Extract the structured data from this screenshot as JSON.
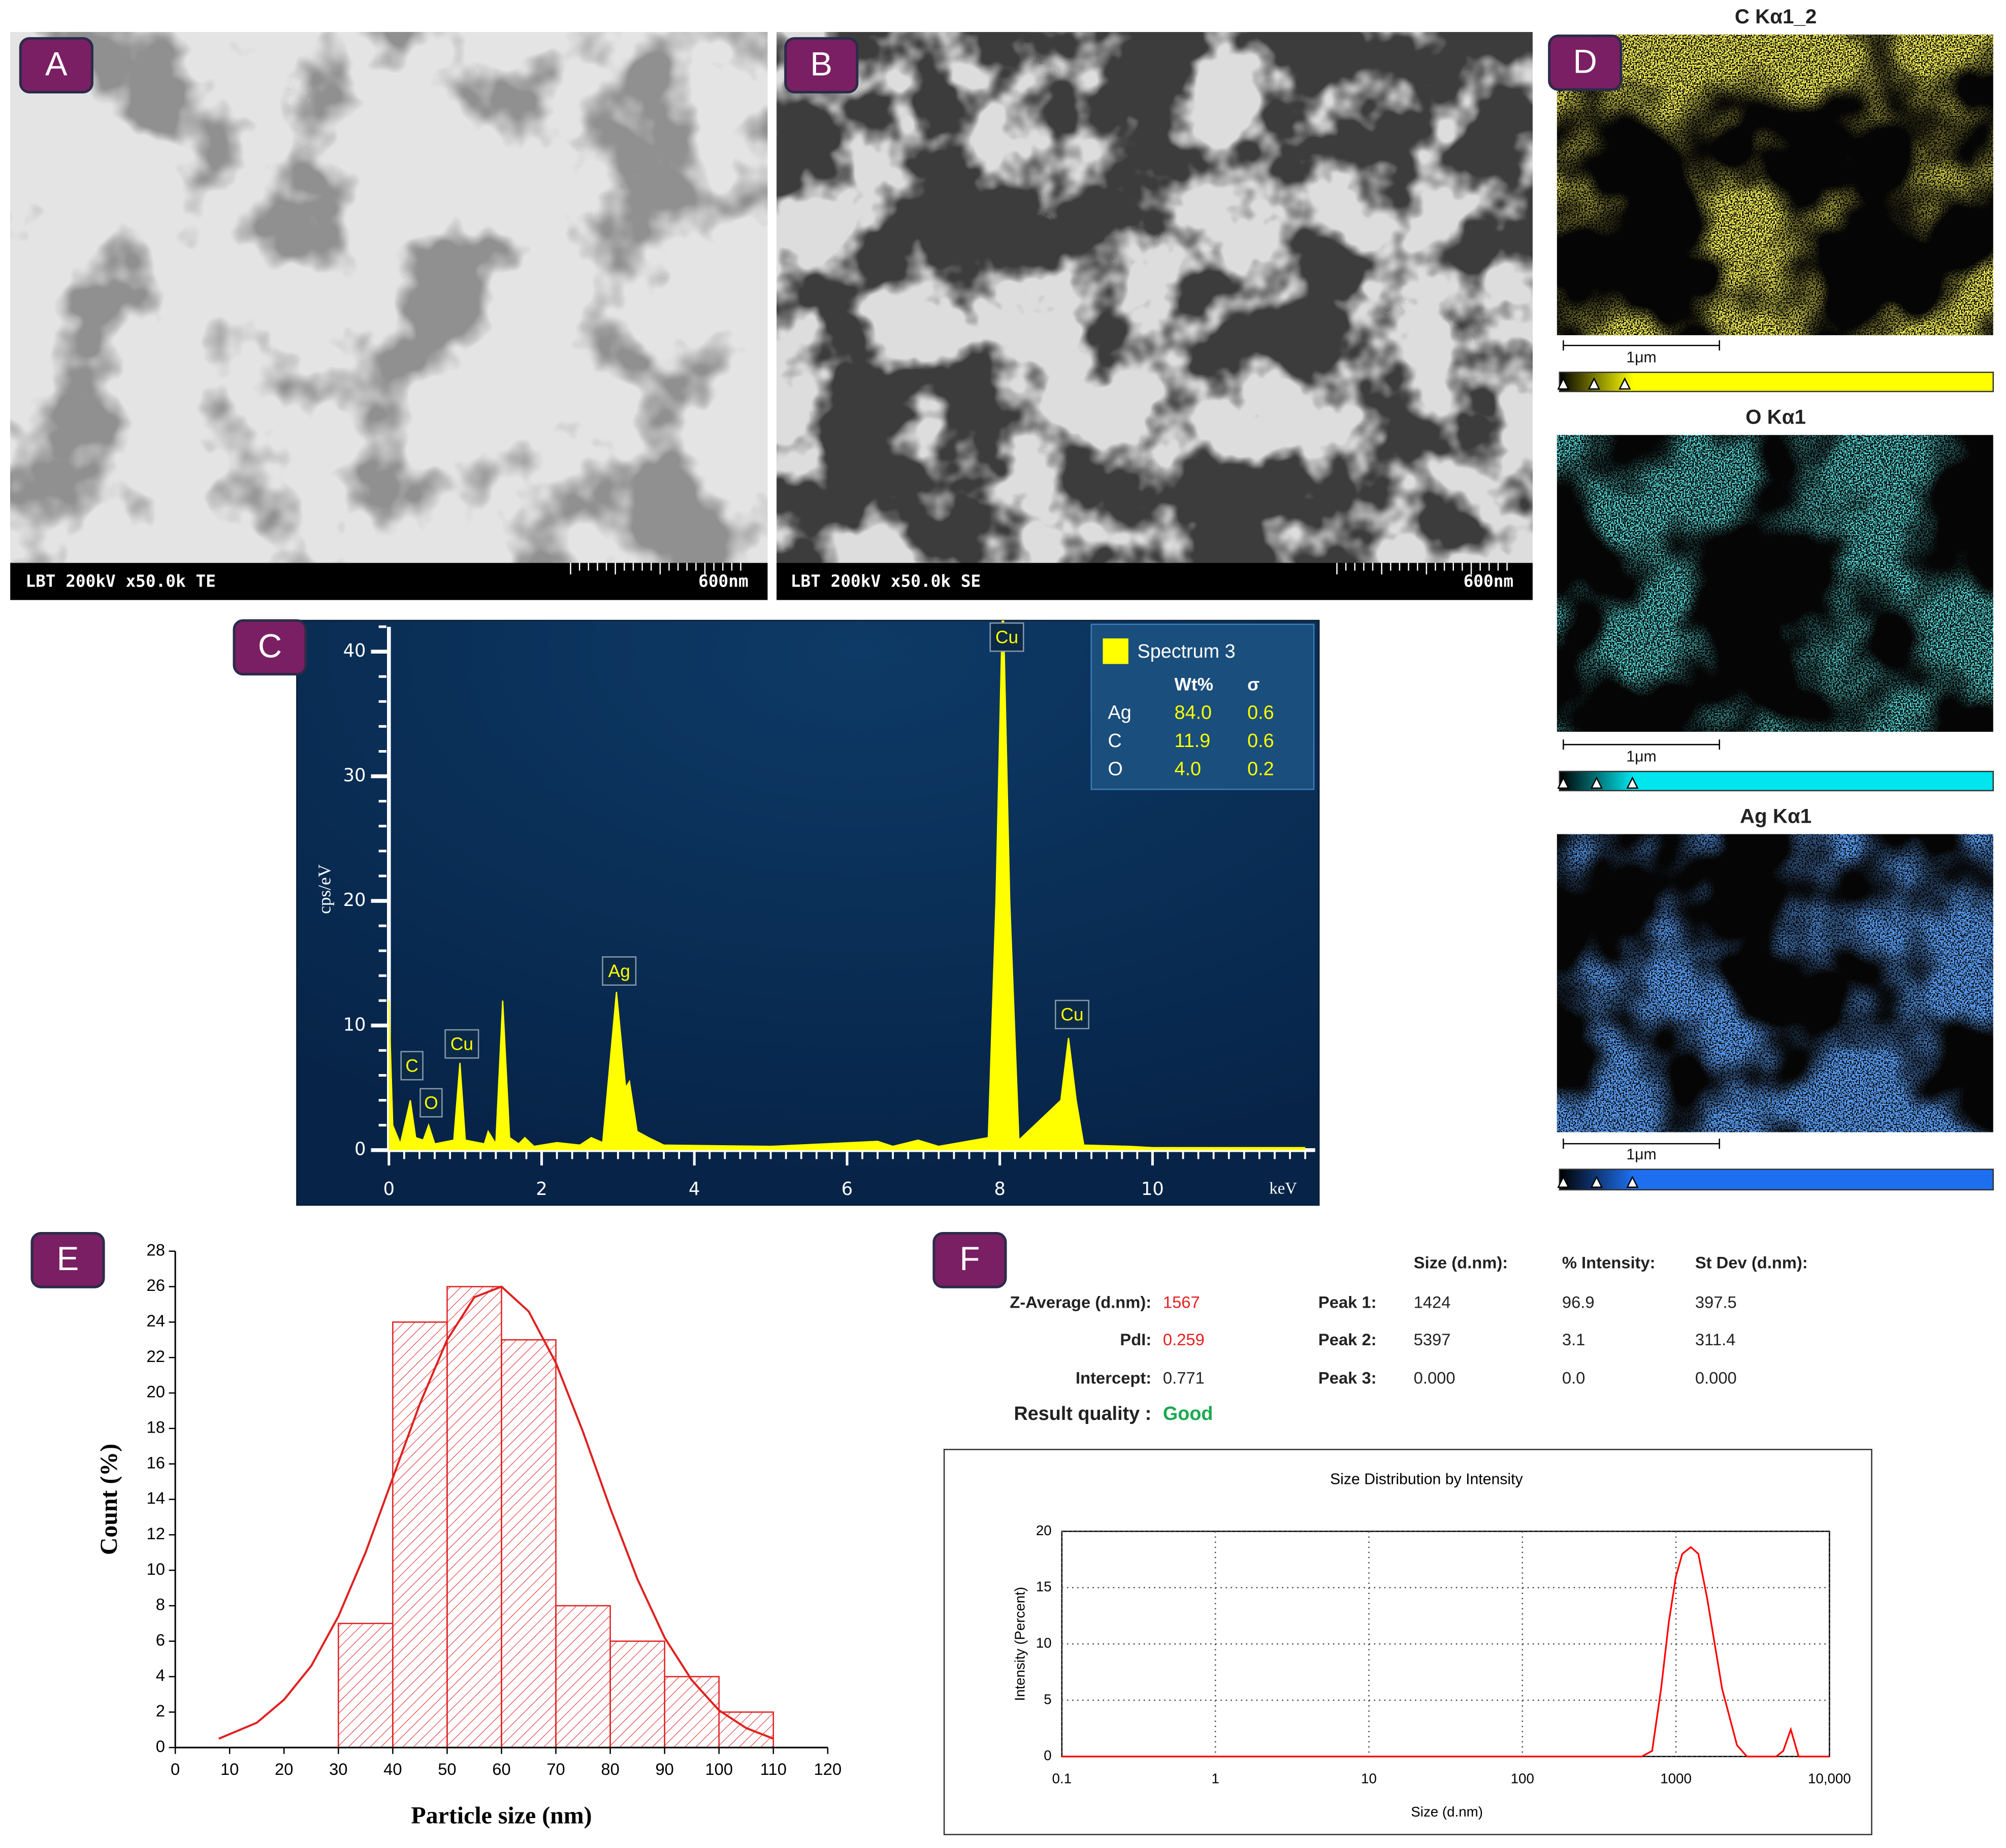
{
  "panels": {
    "A": {
      "label": "A",
      "caption": "LBT  200kV  x50.0k  TE",
      "scale": "600nm"
    },
    "B": {
      "label": "B",
      "caption": "LBT  200kV  x50.0k  SE",
      "scale": "600nm"
    },
    "C": {
      "label": "C"
    },
    "D": {
      "label": "D",
      "maps": [
        {
          "title": "C Kα1_2",
          "scale": "1μm"
        },
        {
          "title": "O Kα1",
          "scale": "1μm"
        },
        {
          "title": "Ag Kα1",
          "scale": "1μm"
        }
      ]
    },
    "E": {
      "label": "E"
    },
    "F": {
      "label": "F",
      "table": {
        "headers": [
          "Size (d.nm):",
          "% Intensity:",
          "St Dev (d.nm):"
        ],
        "summary": [
          [
            "Z-Average (d.nm):",
            "1567"
          ],
          [
            "PdI:",
            "0.259"
          ],
          [
            "Intercept:",
            "0.771"
          ],
          [
            "Result quality :",
            "Good"
          ]
        ],
        "peaks": [
          [
            "Peak 1:",
            "1424",
            "96.9",
            "397.5"
          ],
          [
            "Peak 2:",
            "5397",
            "3.1",
            "311.4"
          ],
          [
            "Peak 3:",
            "0.000",
            "0.0",
            "0.000"
          ]
        ]
      }
    }
  },
  "chart_data": [
    {
      "type": "line",
      "y_label": "cps/eV",
      "x_label": "keV",
      "color": "#ffff00",
      "fill": true,
      "x": [
        0,
        0.05,
        0.15,
        0.28,
        0.35,
        0.45,
        0.52,
        0.6,
        0.85,
        0.93,
        1.0,
        1.25,
        1.3,
        1.4,
        1.49,
        1.58,
        1.7,
        1.78,
        1.9,
        2.2,
        2.5,
        2.65,
        2.8,
        2.98,
        3.1,
        3.15,
        3.25,
        3.4,
        3.6,
        5,
        6.4,
        6.6,
        6.93,
        7.2,
        7.85,
        7.95,
        8.04,
        8.13,
        8.25,
        8.8,
        8.9,
        9.0,
        9.1,
        9.7,
        10,
        12
      ],
      "values": [
        12,
        2,
        0.5,
        4,
        1,
        0.8,
        2,
        0.5,
        0.8,
        7,
        0.8,
        0.5,
        1.5,
        0.5,
        12,
        1,
        0.5,
        1,
        0.3,
        0.6,
        0.4,
        1,
        0.6,
        12.7,
        5,
        5.5,
        1.5,
        1,
        0.4,
        0.3,
        0.7,
        0.3,
        0.8,
        0.3,
        1,
        20,
        45,
        20,
        0.8,
        4,
        9,
        4,
        0.4,
        0.3,
        0.2,
        0.2
      ],
      "xlim": [
        0,
        12.13
      ],
      "ylim": [
        0,
        42.5
      ],
      "xticks": [
        0,
        2,
        4,
        6,
        8,
        10
      ],
      "yticks": [
        0,
        10,
        20,
        30,
        40
      ],
      "peak_labels": [
        "C",
        "O",
        "Cu",
        "Ag",
        "Cu",
        "Cu"
      ],
      "legend": {
        "name": "Spectrum 3",
        "columns": [
          "Wt%",
          "σ"
        ],
        "rows": [
          [
            "Ag",
            "84.0",
            "0.6"
          ],
          [
            "C",
            "11.9",
            "0.6"
          ],
          [
            "O",
            "4.0",
            "0.2"
          ]
        ]
      }
    },
    {
      "type": "histogram",
      "x_label": "Particle size (nm)",
      "y_label": "Count (%)",
      "color": "#e02020",
      "bins": [
        30,
        40,
        50,
        60,
        70,
        80,
        90,
        100,
        110
      ],
      "values": [
        7,
        24,
        26,
        23,
        8,
        6,
        4,
        2
      ],
      "fit": {
        "x": [
          8,
          15,
          20,
          25,
          30,
          35,
          40,
          45,
          50,
          55,
          60,
          65,
          70,
          75,
          80,
          85,
          90,
          95,
          100,
          105,
          110
        ],
        "values": [
          0.5,
          1.4,
          2.7,
          4.6,
          7.4,
          11.0,
          15.2,
          19.4,
          23.0,
          25.4,
          26.0,
          24.6,
          21.7,
          17.8,
          13.5,
          9.5,
          6.2,
          3.8,
          2.1,
          1.1,
          0.5
        ]
      },
      "xlim": [
        0,
        120
      ],
      "ylim": [
        0,
        28
      ],
      "xticks": [
        0,
        10,
        20,
        30,
        40,
        50,
        60,
        70,
        80,
        90,
        100,
        110,
        120
      ],
      "yticks": [
        0,
        2,
        4,
        6,
        8,
        10,
        12,
        14,
        16,
        18,
        20,
        22,
        24,
        26,
        28
      ]
    },
    {
      "type": "line",
      "title": "Size Distribution by Intensity",
      "x_label": "Size (d.nm)",
      "y_label": "Intensity (Percent)",
      "color": "#ff0000",
      "log_x": true,
      "grid": true,
      "x": [
        0.1,
        600,
        700,
        800,
        900,
        1000,
        1100,
        1250,
        1400,
        1600,
        2000,
        2500,
        2900,
        4500,
        5000,
        5600,
        6300,
        10000
      ],
      "values": [
        0,
        0,
        0.5,
        6,
        12,
        16,
        18,
        18.6,
        18,
        14,
        6,
        1,
        0,
        0,
        0.5,
        2.4,
        0,
        0
      ],
      "xlim": [
        0.1,
        10000
      ],
      "ylim": [
        0,
        20
      ],
      "xticks": [
        0.1,
        1,
        10,
        100,
        1000,
        {
          "value": 10000,
          "label": "10,000"
        }
      ],
      "yticks": [
        0,
        5,
        10,
        15,
        20
      ]
    }
  ]
}
